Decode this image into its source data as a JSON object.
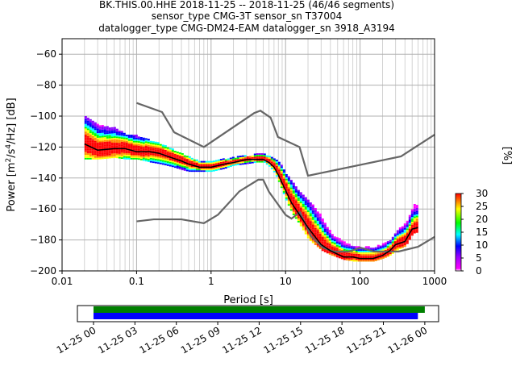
{
  "title": {
    "line1": "BK.THIS.00.HHE   2018-11-25 -- 2018-11-25  (46/46 segments)",
    "line2": "sensor_type CMG-3T sensor_sn T37004",
    "line3": "datalogger_type CMG-DM24-EAM datalogger_sn 3918_A3194"
  },
  "chart_data": [
    {
      "type": "heatmap",
      "subtype": "probabilistic power spectral density",
      "xlabel": "Period [s]",
      "ylabel": "Power [m²/s⁴/Hz] [dB]",
      "xscale": "log",
      "xlim": [
        0.01,
        1000
      ],
      "ylim": [
        -200,
        -50
      ],
      "xticks": [
        0.01,
        0.1,
        1,
        10,
        100,
        1000
      ],
      "xtick_labels": [
        "0.01",
        "0.1",
        "1",
        "10",
        "100",
        "1000"
      ],
      "yticks": [
        -200,
        -180,
        -160,
        -140,
        -120,
        -100,
        -80,
        -60
      ],
      "ytick_labels": [
        "−200",
        "−180",
        "−160",
        "−140",
        "−120",
        "−100",
        "−80",
        "−60"
      ],
      "grid": true,
      "colorbar": {
        "label": "[%]",
        "range": [
          0,
          30
        ],
        "ticks": [
          0,
          5,
          10,
          15,
          20,
          25,
          30
        ],
        "tick_labels": [
          "0",
          "5",
          "10",
          "15",
          "20",
          "25",
          "30"
        ],
        "colormap": [
          "#ffffff",
          "#ff00ff",
          "#0000ff",
          "#00ffff",
          "#00ff00",
          "#ffff00",
          "#ff0000"
        ]
      },
      "mode_curve": {
        "color": "#000000",
        "x": [
          0.02,
          0.03,
          0.05,
          0.07,
          0.1,
          0.15,
          0.2,
          0.3,
          0.4,
          0.5,
          0.7,
          1,
          1.5,
          2,
          3,
          4,
          5,
          6,
          7,
          8,
          10,
          12,
          15,
          20,
          30,
          40,
          60,
          80,
          100,
          150,
          200,
          250,
          300,
          400,
          500,
          600
        ],
        "y": [
          -118,
          -122,
          -121,
          -121,
          -123,
          -123,
          -124,
          -127,
          -129,
          -131,
          -133,
          -133,
          -131,
          -130,
          -128,
          -128,
          -128,
          -130,
          -133,
          -138,
          -148,
          -156,
          -163,
          -172,
          -183,
          -187,
          -191,
          -191,
          -192,
          -192,
          -190,
          -187,
          -183,
          -181,
          -173,
          -172
        ]
      },
      "density": {
        "x": [
          0.02,
          0.03,
          0.05,
          0.07,
          0.1,
          0.15,
          0.2,
          0.3,
          0.4,
          0.5,
          0.7,
          1,
          1.5,
          2,
          3,
          4,
          5,
          6,
          7,
          8,
          10,
          12,
          15,
          20,
          30,
          40,
          60,
          80,
          100,
          150,
          200,
          250,
          300,
          400,
          500,
          600
        ],
        "y_low": [
          -128,
          -128,
          -127,
          -128,
          -128,
          -130,
          -131,
          -133,
          -135,
          -136,
          -136,
          -136,
          -134,
          -132,
          -131,
          -130,
          -130,
          -133,
          -137,
          -143,
          -155,
          -163,
          -170,
          -180,
          -187,
          -190,
          -193,
          -194,
          -194,
          -194,
          -192,
          -190,
          -187,
          -184,
          -176,
          -175
        ],
        "y_high": [
          -101,
          -106,
          -108,
          -112,
          -113,
          -116,
          -118,
          -122,
          -125,
          -127,
          -130,
          -129,
          -128,
          -127,
          -126,
          -125,
          -125,
          -126,
          -128,
          -130,
          -138,
          -143,
          -149,
          -155,
          -165,
          -176,
          -182,
          -185,
          -185,
          -185,
          -183,
          -180,
          -175,
          -169,
          -158,
          -156
        ]
      },
      "noise_models": [
        {
          "name": "high noise model",
          "color": "#666666",
          "x": [
            0.1,
            0.22,
            0.32,
            0.8,
            3.8,
            4.6,
            6.3,
            7.9,
            15.4,
            20,
            354.8,
            1000
          ],
          "y": [
            -91.5,
            -97.4,
            -110.5,
            -120,
            -98,
            -96.5,
            -101,
            -113.5,
            -120,
            -138.5,
            -126,
            -112
          ]
        },
        {
          "name": "low noise model",
          "color": "#666666",
          "x": [
            0.1,
            0.17,
            0.4,
            0.8,
            1.24,
            2.4,
            4.3,
            5,
            6,
            10,
            12,
            15.6,
            21.9,
            31.6,
            45,
            70,
            101,
            154,
            328,
            600,
            1000
          ],
          "y": [
            -168,
            -166.7,
            -166.7,
            -169.2,
            -163.7,
            -148.6,
            -141.1,
            -141.1,
            -149,
            -163.8,
            -166.2,
            -162.1,
            -177.5,
            -185,
            -187.5,
            -187.5,
            -185,
            -187.5,
            -187.5,
            -184.4,
            -178
          ]
        }
      ]
    },
    {
      "type": "bar",
      "subtype": "time coverage",
      "xlabel": "",
      "xtick_labels": [
        "11-25 00",
        "11-25 03",
        "11-25 06",
        "11-25 09",
        "11-25 12",
        "11-25 15",
        "11-25 18",
        "11-25 21",
        "11-26 00"
      ],
      "xlim": [
        "2018-11-25 -01:10",
        "2018-11-26 01:00"
      ],
      "series": [
        {
          "color": "#008000",
          "start": "2018-11-25 00:00",
          "end": "2018-11-26 00:00"
        },
        {
          "color": "#0000ff",
          "start": "2018-11-25 00:00",
          "end": "2018-11-25 23:30"
        }
      ]
    }
  ]
}
